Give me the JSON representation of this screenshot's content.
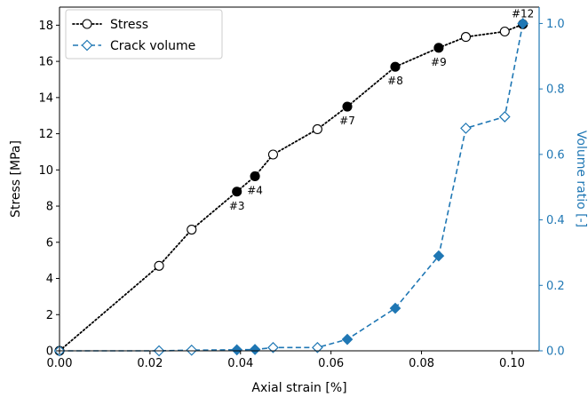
{
  "chart_data": {
    "type": "line",
    "xlabel": "Axial strain [%]",
    "ylabel": "Stress [MPa]",
    "y2label": "Volume ratio [-]",
    "xlim": [
      0.0,
      0.106
    ],
    "ylim": [
      0,
      19
    ],
    "y2lim": [
      0,
      1.05
    ],
    "xticks": [
      0.0,
      0.02,
      0.04,
      0.06,
      0.08,
      0.1
    ],
    "xtick_labels": [
      "0.00",
      "0.02",
      "0.04",
      "0.06",
      "0.08",
      "0.10"
    ],
    "yticks": [
      0,
      2,
      4,
      6,
      8,
      10,
      12,
      14,
      16,
      18
    ],
    "ytick_labels": [
      "0",
      "2",
      "4",
      "6",
      "8",
      "10",
      "12",
      "14",
      "16",
      "18"
    ],
    "y2ticks": [
      0.0,
      0.2,
      0.4,
      0.6,
      0.8,
      1.0
    ],
    "y2tick_labels": [
      "0.0",
      "0.2",
      "0.4",
      "0.6",
      "0.8",
      "1.0"
    ],
    "grid": false,
    "legend_position": "top-left",
    "colors": {
      "stress": "#000000",
      "crack": "#1f77b4"
    },
    "series": [
      {
        "name": "Stress",
        "axis": "left",
        "style": "dotted-circle",
        "x": [
          0.0,
          0.022,
          0.0292,
          0.0392,
          0.0432,
          0.0472,
          0.057,
          0.0636,
          0.0742,
          0.0838,
          0.0898,
          0.0984,
          0.1024
        ],
        "y": [
          0.0,
          4.7,
          6.7,
          8.8,
          9.65,
          10.85,
          12.25,
          13.5,
          15.7,
          16.75,
          17.35,
          17.65,
          18.05
        ],
        "filled": [
          false,
          false,
          false,
          true,
          true,
          false,
          false,
          true,
          true,
          true,
          false,
          false,
          true
        ]
      },
      {
        "name": "Crack volume",
        "axis": "right",
        "style": "dashed-diamond",
        "x": [
          0.0,
          0.022,
          0.0292,
          0.0392,
          0.0432,
          0.0472,
          0.057,
          0.0636,
          0.0742,
          0.0838,
          0.0898,
          0.0984,
          0.1024
        ],
        "y": [
          0.0,
          0.0,
          0.002,
          0.003,
          0.004,
          0.01,
          0.01,
          0.035,
          0.13,
          0.29,
          0.68,
          0.715,
          1.0
        ],
        "filled": [
          false,
          false,
          false,
          true,
          true,
          false,
          false,
          true,
          true,
          true,
          false,
          false,
          true
        ]
      }
    ],
    "annotations": [
      {
        "text": "#3",
        "x": 0.0392,
        "y": 8.8,
        "pos": "below"
      },
      {
        "text": "#4",
        "x": 0.0432,
        "y": 9.65,
        "pos": "below"
      },
      {
        "text": "#7",
        "x": 0.0636,
        "y": 13.5,
        "pos": "below"
      },
      {
        "text": "#8",
        "x": 0.0742,
        "y": 15.7,
        "pos": "below"
      },
      {
        "text": "#9",
        "x": 0.0838,
        "y": 16.75,
        "pos": "below"
      },
      {
        "text": "#12",
        "x": 0.1024,
        "y": 18.05,
        "pos": "above"
      }
    ]
  }
}
